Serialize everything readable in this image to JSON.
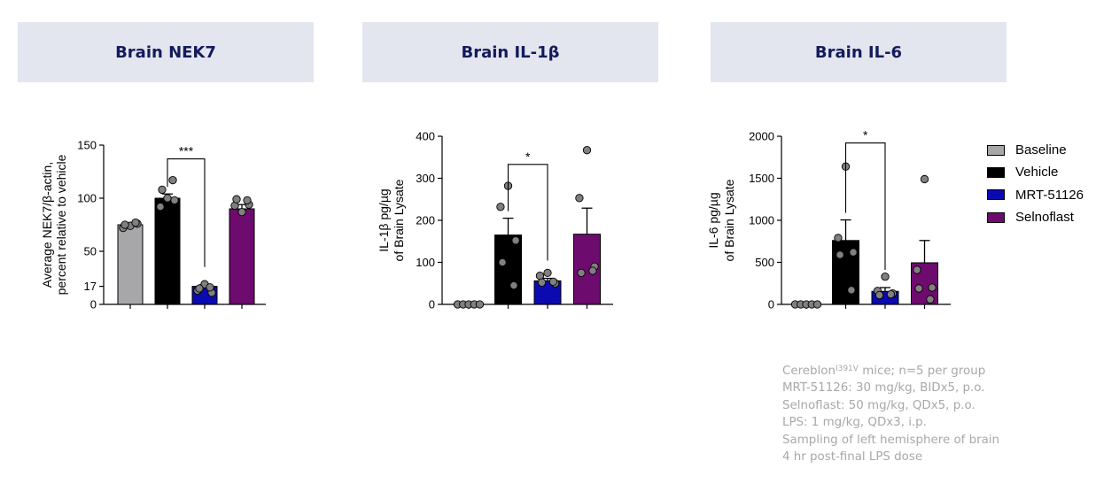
{
  "colors": {
    "header_bg": "#e3e5ef",
    "header_text": "#131b5a",
    "baseline": "#a7a7aa",
    "vehicle": "#000000",
    "mrt": "#0a0ab0",
    "selnoflast": "#6e0b6e",
    "dot": "#808080",
    "notes_text": "#a8a8a8"
  },
  "legend": {
    "items": [
      {
        "label": "Baseline",
        "color": "#a7a7aa"
      },
      {
        "label": "Vehicle",
        "color": "#000000"
      },
      {
        "label": "MRT-51126",
        "color": "#0a0ab0"
      },
      {
        "label": "Selnoflast",
        "color": "#6e0b6e"
      }
    ]
  },
  "notes": {
    "line1_main": "Cereblon",
    "line1_sup": "I391V",
    "line1_rest": " mice; n=5 per group",
    "line2": "MRT-51126: 30 mg/kg, BIDx5, p.o.",
    "line3": "Selnoflast: 50 mg/kg, QDx5, p.o.",
    "line4": "LPS: 1 mg/kg, QDx3, i.p.",
    "line5": "Sampling of left hemisphere of brain",
    "line6": "4 hr post-final LPS dose"
  },
  "chart_data": [
    {
      "type": "bar",
      "title": "Brain NEK7",
      "ylabel_line1": "Average NEK7/β-actin,",
      "ylabel_line2": "percent relative to vehicle",
      "categories": [
        "Baseline",
        "Vehicle",
        "MRT-51126",
        "Selnoflast"
      ],
      "values": [
        75,
        100,
        17,
        90
      ],
      "errors": [
        2,
        4,
        1.5,
        4
      ],
      "points": [
        [
          74,
          72,
          76,
          75,
          77
        ],
        [
          100,
          92,
          98,
          108,
          117
        ],
        [
          19,
          13,
          11,
          15,
          16
        ],
        [
          87,
          93,
          94,
          99,
          98
        ]
      ],
      "yticks": [
        0,
        17,
        50,
        100,
        150
      ],
      "ylim": [
        0,
        150
      ],
      "significance": {
        "from": 1,
        "to": 2,
        "label": "***",
        "y": 137
      }
    },
    {
      "type": "bar",
      "title": "Brain IL-1β",
      "ylabel_line1": "IL-1β pg/µg",
      "ylabel_line2": "of Brain Lysate",
      "categories": [
        "Baseline",
        "Vehicle",
        "MRT-51126",
        "Selnoflast"
      ],
      "values": [
        0,
        165,
        56,
        167
      ],
      "errors": [
        0,
        40,
        6,
        62
      ],
      "points": [
        [
          0,
          0,
          0,
          0,
          0
        ],
        [
          282,
          232,
          152,
          100,
          45
        ],
        [
          75,
          68,
          50,
          52,
          54
        ],
        [
          367,
          253,
          90,
          75,
          80
        ]
      ],
      "yticks": [
        0,
        100,
        200,
        300,
        400
      ],
      "ylim": [
        0,
        400
      ],
      "significance": {
        "from": 1,
        "to": 2,
        "label": "*",
        "y": 333
      }
    },
    {
      "type": "bar",
      "title": "Brain IL-6",
      "ylabel_line1": "IL-6 pg/µg",
      "ylabel_line2": "of Brain Lysate",
      "categories": [
        "Baseline",
        "Vehicle",
        "MRT-51126",
        "Selnoflast"
      ],
      "values": [
        0,
        760,
        155,
        495
      ],
      "errors": [
        0,
        245,
        45,
        265
      ],
      "points": [
        [
          0,
          0,
          0,
          0,
          0
        ],
        [
          1640,
          790,
          620,
          590,
          170
        ],
        [
          330,
          160,
          130,
          110,
          120
        ],
        [
          1490,
          410,
          200,
          190,
          60
        ]
      ],
      "yticks": [
        0,
        500,
        1000,
        1500,
        2000
      ],
      "ylim": [
        0,
        2000
      ],
      "significance": {
        "from": 1,
        "to": 2,
        "label": "*",
        "y": 1920
      }
    }
  ]
}
